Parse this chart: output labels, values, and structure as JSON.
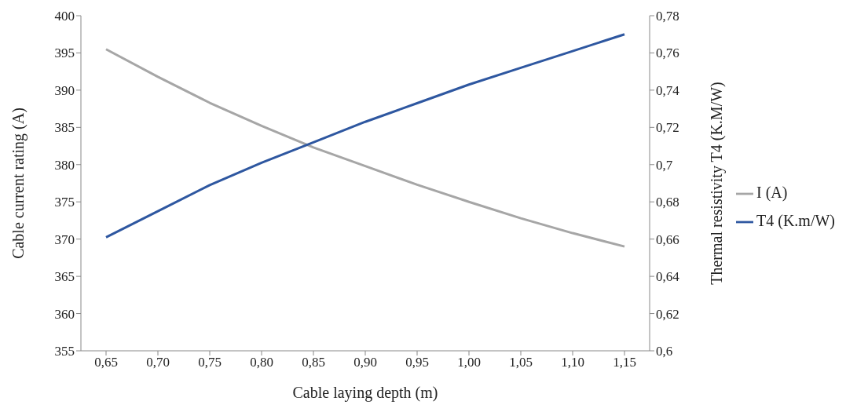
{
  "chart_data": {
    "type": "line",
    "xlabel": "Cable laying depth (m)",
    "ylabel": "Cable current rating (A)",
    "y2label": "Thermal resistivity T4 (K.M/W)",
    "categories": [
      "0,65",
      "0,70",
      "0,75",
      "0,80",
      "0,85",
      "0,90",
      "0,95",
      "1,00",
      "1,05",
      "1,10",
      "1,15"
    ],
    "series": [
      {
        "name": "I (A)",
        "color": "#a6a6a6",
        "values": [
          395.5,
          391.8,
          388.3,
          385.2,
          382.3,
          379.8,
          377.3,
          375.0,
          372.8,
          370.8,
          369.0
        ]
      },
      {
        "name": "T4 (K.m/W)",
        "color": "#2e57a0",
        "axis": "y2",
        "values": [
          0.661,
          0.675,
          0.689,
          0.701,
          0.712,
          0.723,
          0.733,
          0.743,
          0.752,
          0.761,
          0.77
        ]
      }
    ],
    "ylim": [
      355,
      400
    ],
    "yticks": [
      355,
      360,
      365,
      370,
      375,
      380,
      385,
      390,
      395,
      400
    ],
    "y2lim": [
      0.6,
      0.78
    ],
    "y2ticks": [
      {
        "value": 0.6,
        "label": "0,6"
      },
      {
        "value": 0.62,
        "label": "0,62"
      },
      {
        "value": 0.64,
        "label": "0,64"
      },
      {
        "value": 0.66,
        "label": "0,66"
      },
      {
        "value": 0.68,
        "label": "0,68"
      },
      {
        "value": 0.7,
        "label": "0,7"
      },
      {
        "value": 0.72,
        "label": "0,72"
      },
      {
        "value": 0.74,
        "label": "0,74"
      },
      {
        "value": 0.76,
        "label": "0,76"
      },
      {
        "value": 0.78,
        "label": "0,78"
      }
    ],
    "grid": false,
    "legend": "right",
    "marker": "none",
    "line_style": "solid"
  }
}
